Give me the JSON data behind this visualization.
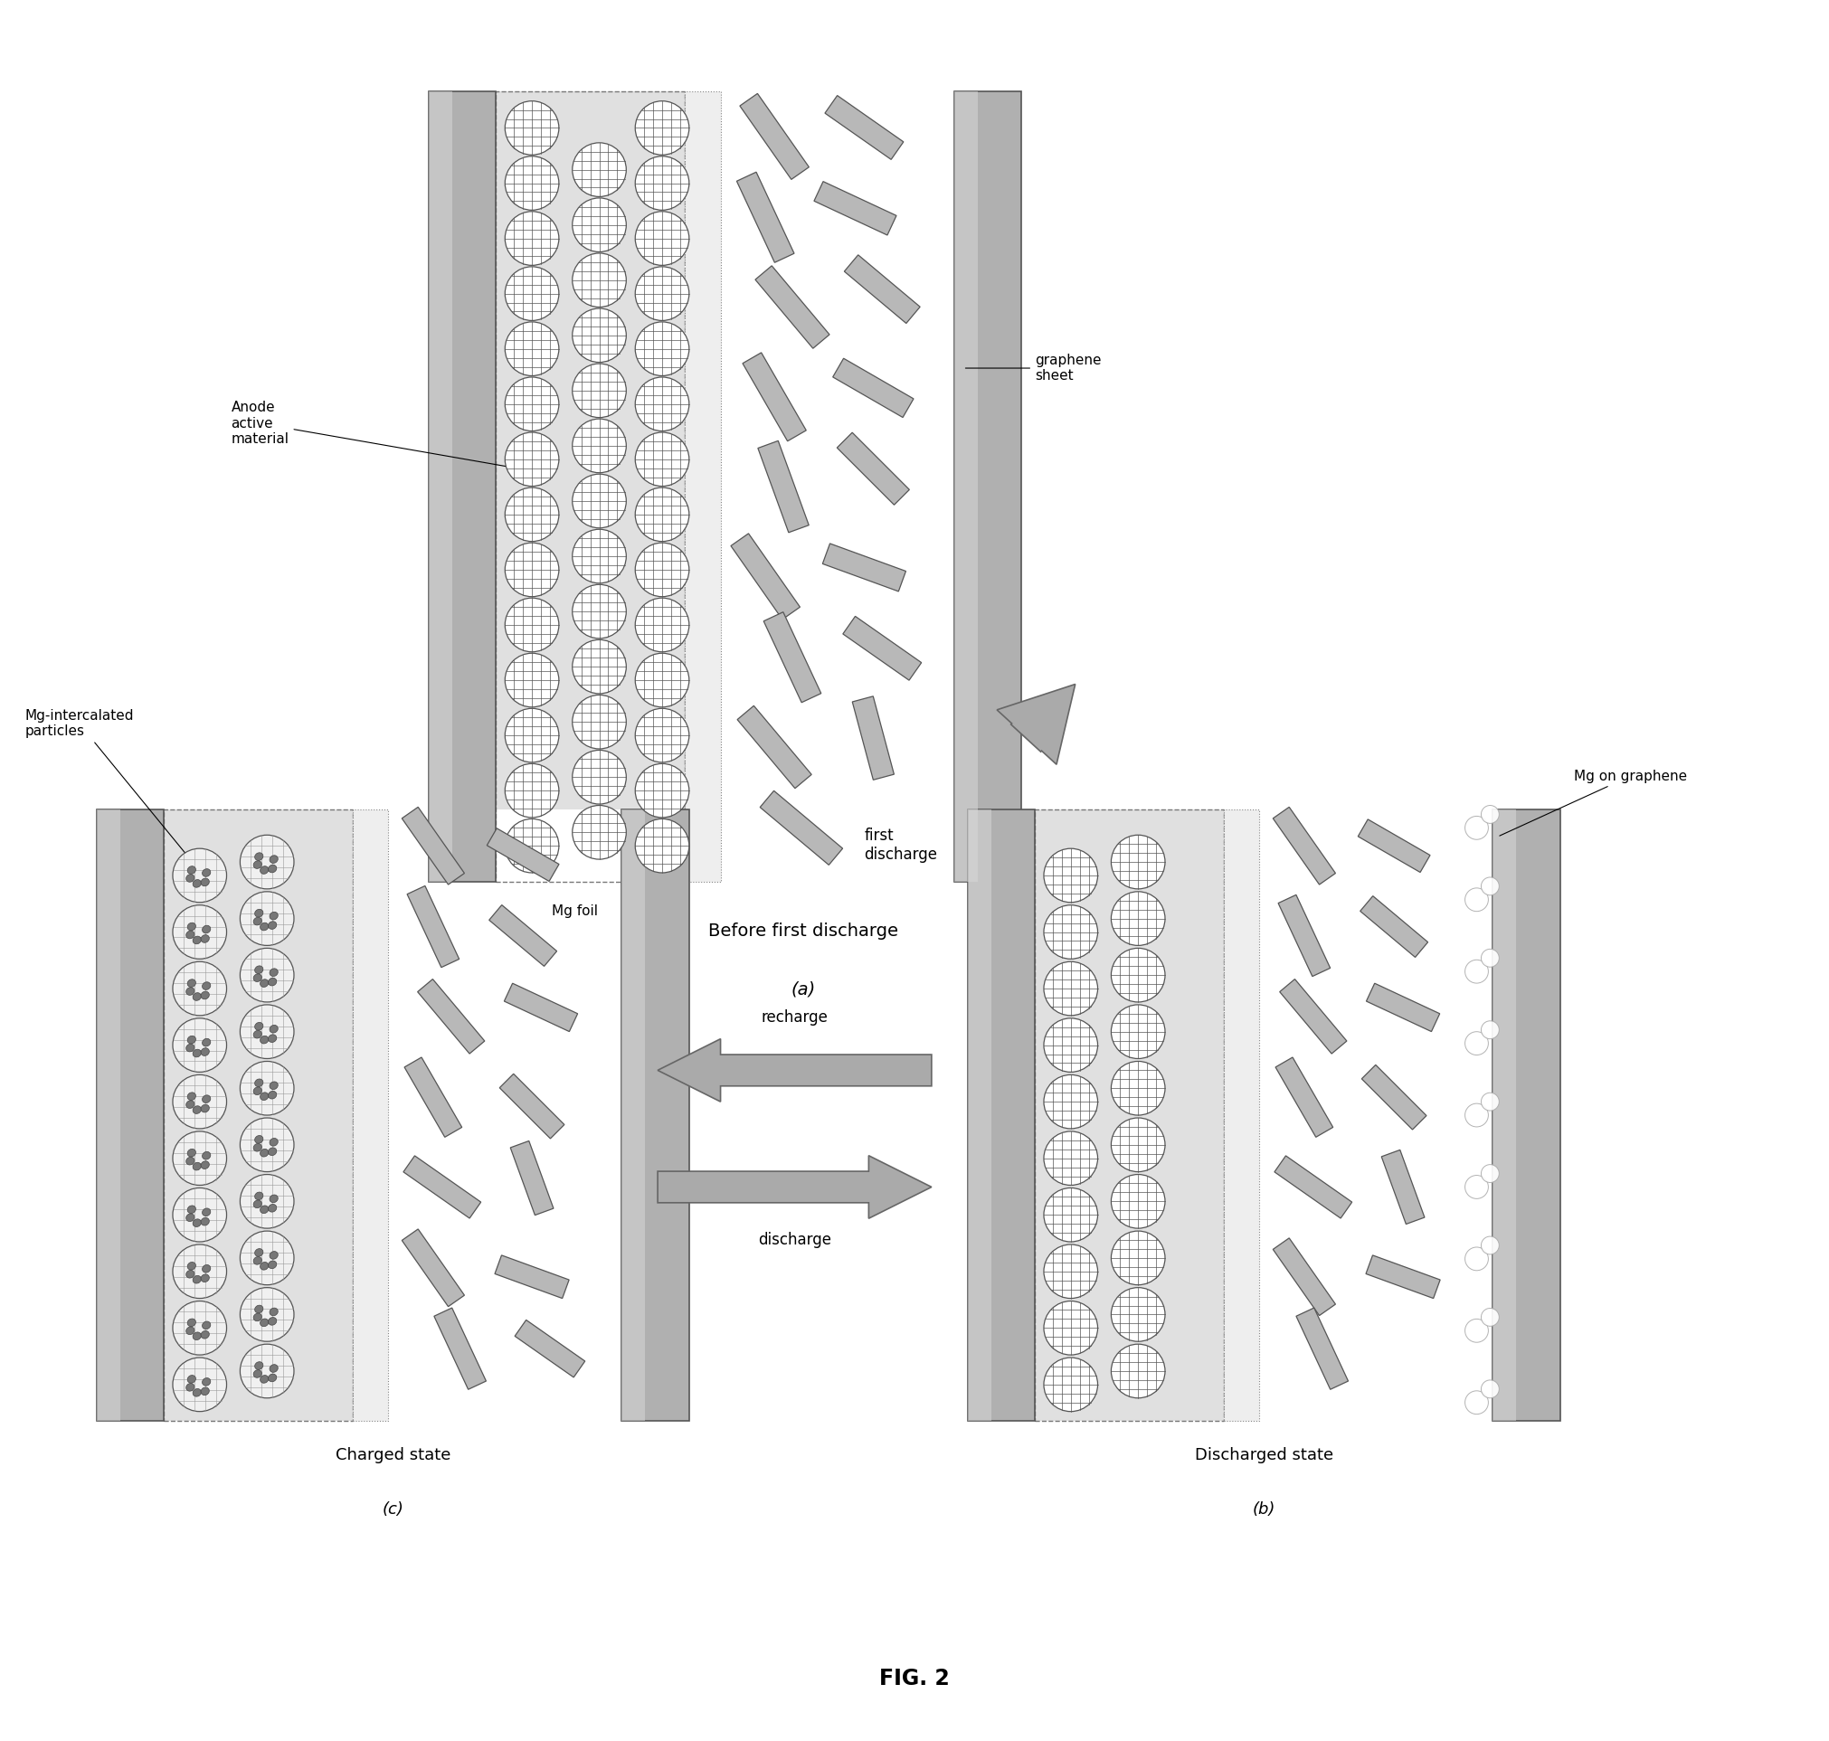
{
  "fig_width": 20.22,
  "fig_height": 19.25,
  "bg_color": "#ffffff",
  "title": "FIG. 2",
  "panel_a_label": "(a)",
  "panel_b_label": "(b)",
  "panel_c_label": "(c)",
  "text_before": "Before first discharge",
  "text_discharged": "Discharged state",
  "text_charged": "Charged state",
  "text_mg_foil": "Mg foil",
  "text_anode": "Anode\nactive\nmaterial",
  "text_graphene": "graphene\nsheet",
  "text_mg_graphene": "Mg on graphene",
  "text_mg_intercalated": "Mg-intercalated\nparticles",
  "text_first_discharge": "first\ndischarge",
  "text_recharge": "recharge",
  "text_discharge": "discharge",
  "cc_face": "#b0b0b0",
  "cc_edge": "#555555",
  "cc_highlight": "#d8d8d8",
  "anode_face": "#e0e0e0",
  "sep_face": "#eeeeee",
  "graphene_face": "#b8b8b8",
  "graphene_edge": "#555555",
  "circle_face": "#ffffff",
  "circle_edge": "#555555",
  "particle_face": "#aaaaaa",
  "particle_edge": "#444444",
  "arrow_face": "#aaaaaa",
  "arrow_edge": "#666666"
}
